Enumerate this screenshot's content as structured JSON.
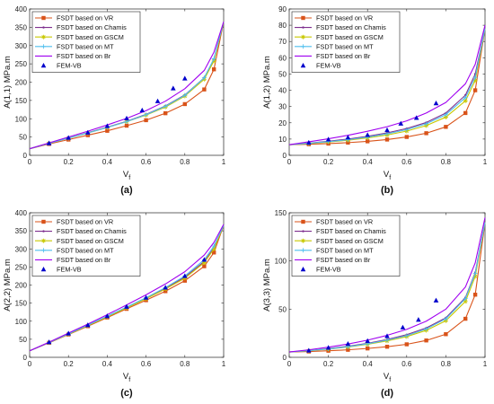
{
  "chart_data": [
    {
      "type": "line",
      "caption": "(a)",
      "ylabel_main": "A(1,1)",
      "ylabel_unit": " MPa.m",
      "xlabel_main": "V",
      "xlabel_sub": "f",
      "xlim": [
        0,
        1
      ],
      "ylim": [
        0,
        400
      ],
      "xticks": [
        0,
        0.2,
        0.4,
        0.6,
        0.8,
        1
      ],
      "xtick_labels": [
        "0",
        "0.2",
        "0.4",
        "0.6",
        "0.8",
        "1"
      ],
      "yticks": [
        0,
        50,
        100,
        150,
        200,
        250,
        300,
        350,
        400
      ],
      "ytick_labels": [
        "0",
        "50",
        "100",
        "150",
        "200",
        "250",
        "300",
        "350",
        "400"
      ],
      "legend_position": "top-left",
      "x": [
        0,
        0.1,
        0.2,
        0.3,
        0.4,
        0.5,
        0.6,
        0.7,
        0.8,
        0.9,
        0.95,
        1.0
      ],
      "series": [
        {
          "name": "FSDT based on VR",
          "color": "#d95319",
          "marker": "square",
          "values": [
            18,
            31,
            43,
            55,
            67,
            81,
            96,
            115,
            140,
            180,
            235,
            365
          ]
        },
        {
          "name": "FSDT based on Chamis",
          "color": "#7e2f8e",
          "marker": "dot",
          "values": [
            18,
            33,
            47,
            62,
            77,
            93,
            112,
            135,
            165,
            212,
            262,
            365
          ]
        },
        {
          "name": "FSDT based on GSCM",
          "color": "#c8c800",
          "marker": "star",
          "values": [
            18,
            33,
            47,
            61,
            76,
            92,
            110,
            132,
            162,
            208,
            258,
            365
          ]
        },
        {
          "name": "FSDT based on MT",
          "color": "#4dbeee",
          "marker": "plus",
          "values": [
            18,
            33,
            47,
            61,
            76,
            92,
            111,
            134,
            164,
            212,
            264,
            365
          ]
        },
        {
          "name": "FSDT based on Br",
          "color": "#a000f0",
          "marker": "none",
          "values": [
            18,
            34,
            50,
            66,
            83,
            101,
            122,
            148,
            182,
            232,
            282,
            365
          ]
        },
        {
          "name": "FEM-VB",
          "color": "#0000cc",
          "marker": "triangle",
          "scatter": true,
          "points": [
            [
              0.1,
              33
            ],
            [
              0.2,
              48
            ],
            [
              0.3,
              62
            ],
            [
              0.4,
              80
            ],
            [
              0.5,
              101
            ],
            [
              0.58,
              123
            ],
            [
              0.66,
              148
            ],
            [
              0.74,
              183
            ],
            [
              0.8,
              210
            ]
          ]
        }
      ]
    },
    {
      "type": "line",
      "caption": "(b)",
      "ylabel_main": "A(1,2)",
      "ylabel_unit": " MPa.m",
      "xlabel_main": "V",
      "xlabel_sub": "f",
      "xlim": [
        0,
        1
      ],
      "ylim": [
        0,
        90
      ],
      "xticks": [
        0,
        0.2,
        0.4,
        0.6,
        0.8,
        1
      ],
      "xtick_labels": [
        "0",
        "0.2",
        "0.4",
        "0.6",
        "0.8",
        "1"
      ],
      "yticks": [
        0,
        10,
        20,
        30,
        40,
        50,
        60,
        70,
        80,
        90
      ],
      "ytick_labels": [
        "0",
        "10",
        "20",
        "30",
        "40",
        "50",
        "60",
        "70",
        "80",
        "90"
      ],
      "legend_position": "top-left",
      "x": [
        0,
        0.1,
        0.2,
        0.3,
        0.4,
        0.5,
        0.6,
        0.7,
        0.8,
        0.9,
        0.95,
        1.0
      ],
      "series": [
        {
          "name": "FSDT based on VR",
          "color": "#d95319",
          "marker": "square",
          "values": [
            6.5,
            6.8,
            7.2,
            7.8,
            8.6,
            9.7,
            11.3,
            13.6,
            17.5,
            26,
            40,
            78
          ]
        },
        {
          "name": "FSDT based on Chamis",
          "color": "#7e2f8e",
          "marker": "dot",
          "values": [
            6.5,
            7.5,
            8.7,
            10,
            11.7,
            13.8,
            16.5,
            20.2,
            26,
            37,
            50,
            78
          ]
        },
        {
          "name": "FSDT based on GSCM",
          "color": "#c8c800",
          "marker": "star",
          "values": [
            6.5,
            7.3,
            8.2,
            9.3,
            10.7,
            12.5,
            14.9,
            18.3,
            23.5,
            33.5,
            46,
            78
          ]
        },
        {
          "name": "FSDT based on MT",
          "color": "#4dbeee",
          "marker": "plus",
          "values": [
            6.5,
            7.4,
            8.4,
            9.6,
            11.2,
            13.2,
            15.8,
            19.4,
            25,
            35.5,
            48,
            78
          ]
        },
        {
          "name": "FSDT based on Br",
          "color": "#a000f0",
          "marker": "none",
          "values": [
            6.5,
            8.3,
            10.2,
            12.3,
            14.8,
            17.6,
            21.2,
            26,
            32.5,
            44,
            56,
            80
          ]
        },
        {
          "name": "FEM-VB",
          "color": "#0000cc",
          "marker": "triangle",
          "scatter": true,
          "points": [
            [
              0.1,
              7.8
            ],
            [
              0.2,
              9.8
            ],
            [
              0.3,
              11
            ],
            [
              0.4,
              12.5
            ],
            [
              0.5,
              15.5
            ],
            [
              0.57,
              19.5
            ],
            [
              0.65,
              23
            ],
            [
              0.75,
              32
            ]
          ]
        }
      ]
    },
    {
      "type": "line",
      "caption": "(c)",
      "ylabel_main": "A(2,2)",
      "ylabel_unit": " MPa.m",
      "xlabel_main": "V",
      "xlabel_sub": "f",
      "xlim": [
        0,
        1
      ],
      "ylim": [
        0,
        400
      ],
      "xticks": [
        0,
        0.2,
        0.4,
        0.6,
        0.8,
        1
      ],
      "xtick_labels": [
        "0",
        "0.2",
        "0.4",
        "0.6",
        "0.8",
        "1"
      ],
      "yticks": [
        0,
        50,
        100,
        150,
        200,
        250,
        300,
        350,
        400
      ],
      "ytick_labels": [
        "0",
        "50",
        "100",
        "150",
        "200",
        "250",
        "300",
        "350",
        "400"
      ],
      "legend_position": "top-left",
      "x": [
        0,
        0.1,
        0.2,
        0.3,
        0.4,
        0.5,
        0.6,
        0.7,
        0.8,
        0.9,
        0.95,
        1.0
      ],
      "series": [
        {
          "name": "FSDT based on VR",
          "color": "#d95319",
          "marker": "square",
          "values": [
            18,
            40,
            63,
            86,
            110,
            134,
            158,
            183,
            212,
            252,
            290,
            365
          ]
        },
        {
          "name": "FSDT based on Chamis",
          "color": "#7e2f8e",
          "marker": "dot",
          "values": [
            18,
            41,
            65,
            89,
            113,
            138,
            164,
            191,
            222,
            265,
            303,
            365
          ]
        },
        {
          "name": "FSDT based on GSCM",
          "color": "#c8c800",
          "marker": "star",
          "values": [
            18,
            41,
            64,
            88,
            112,
            137,
            162,
            189,
            219,
            262,
            300,
            365
          ]
        },
        {
          "name": "FSDT based on MT",
          "color": "#4dbeee",
          "marker": "plus",
          "values": [
            18,
            41,
            65,
            89,
            114,
            139,
            165,
            193,
            225,
            270,
            308,
            365
          ]
        },
        {
          "name": "FSDT based on Br",
          "color": "#a000f0",
          "marker": "none",
          "values": [
            18,
            42,
            67,
            92,
            118,
            145,
            173,
            203,
            237,
            283,
            318,
            368
          ]
        },
        {
          "name": "FEM-VB",
          "color": "#0000cc",
          "marker": "triangle",
          "scatter": true,
          "points": [
            [
              0.1,
              42
            ],
            [
              0.2,
              66
            ],
            [
              0.3,
              89
            ],
            [
              0.4,
              114
            ],
            [
              0.5,
              140
            ],
            [
              0.6,
              165
            ],
            [
              0.7,
              193
            ],
            [
              0.8,
              225
            ],
            [
              0.9,
              270
            ]
          ]
        }
      ]
    },
    {
      "type": "line",
      "caption": "(d)",
      "ylabel_main": "A(3,3)",
      "ylabel_unit": " MPa.m",
      "xlabel_main": "V",
      "xlabel_sub": "f",
      "xlim": [
        0,
        1
      ],
      "ylim": [
        0,
        150
      ],
      "xticks": [
        0,
        0.2,
        0.4,
        0.6,
        0.8,
        1
      ],
      "xtick_labels": [
        "0",
        "0.2",
        "0.4",
        "0.6",
        "0.8",
        "1"
      ],
      "yticks": [
        0,
        50,
        100,
        150
      ],
      "ytick_labels": [
        "0",
        "50",
        "100",
        "150"
      ],
      "legend_position": "top-left",
      "x": [
        0,
        0.1,
        0.2,
        0.3,
        0.4,
        0.5,
        0.6,
        0.7,
        0.8,
        0.9,
        0.95,
        1.0
      ],
      "series": [
        {
          "name": "FSDT based on VR",
          "color": "#d95319",
          "marker": "square",
          "values": [
            5.5,
            6,
            6.8,
            7.8,
            9.2,
            11,
            13.5,
            17.5,
            24,
            40,
            65,
            140
          ]
        },
        {
          "name": "FSDT based on Chamis",
          "color": "#7e2f8e",
          "marker": "dot",
          "values": [
            5.5,
            7,
            9,
            11.5,
            14.5,
            18.5,
            23.5,
            30.5,
            41,
            62,
            88,
            140
          ]
        },
        {
          "name": "FSDT based on GSCM",
          "color": "#c8c800",
          "marker": "star",
          "values": [
            5.5,
            6.8,
            8.5,
            10.7,
            13.5,
            17,
            21.5,
            28,
            38,
            58,
            84,
            140
          ]
        },
        {
          "name": "FSDT based on MT",
          "color": "#4dbeee",
          "marker": "plus",
          "values": [
            5.5,
            6.9,
            8.7,
            11,
            14,
            17.8,
            22.5,
            29.5,
            40,
            61,
            87,
            140
          ]
        },
        {
          "name": "FSDT based on Br",
          "color": "#a000f0",
          "marker": "none",
          "values": [
            5.5,
            7.8,
            10.5,
            13.8,
            17.8,
            22.8,
            29,
            37.5,
            50,
            73,
            98,
            145
          ]
        },
        {
          "name": "FEM-VB",
          "color": "#0000cc",
          "marker": "triangle",
          "scatter": true,
          "points": [
            [
              0.1,
              7
            ],
            [
              0.2,
              10
            ],
            [
              0.3,
              14
            ],
            [
              0.4,
              17
            ],
            [
              0.5,
              22
            ],
            [
              0.58,
              31
            ],
            [
              0.66,
              39
            ],
            [
              0.75,
              59
            ]
          ]
        }
      ]
    }
  ]
}
